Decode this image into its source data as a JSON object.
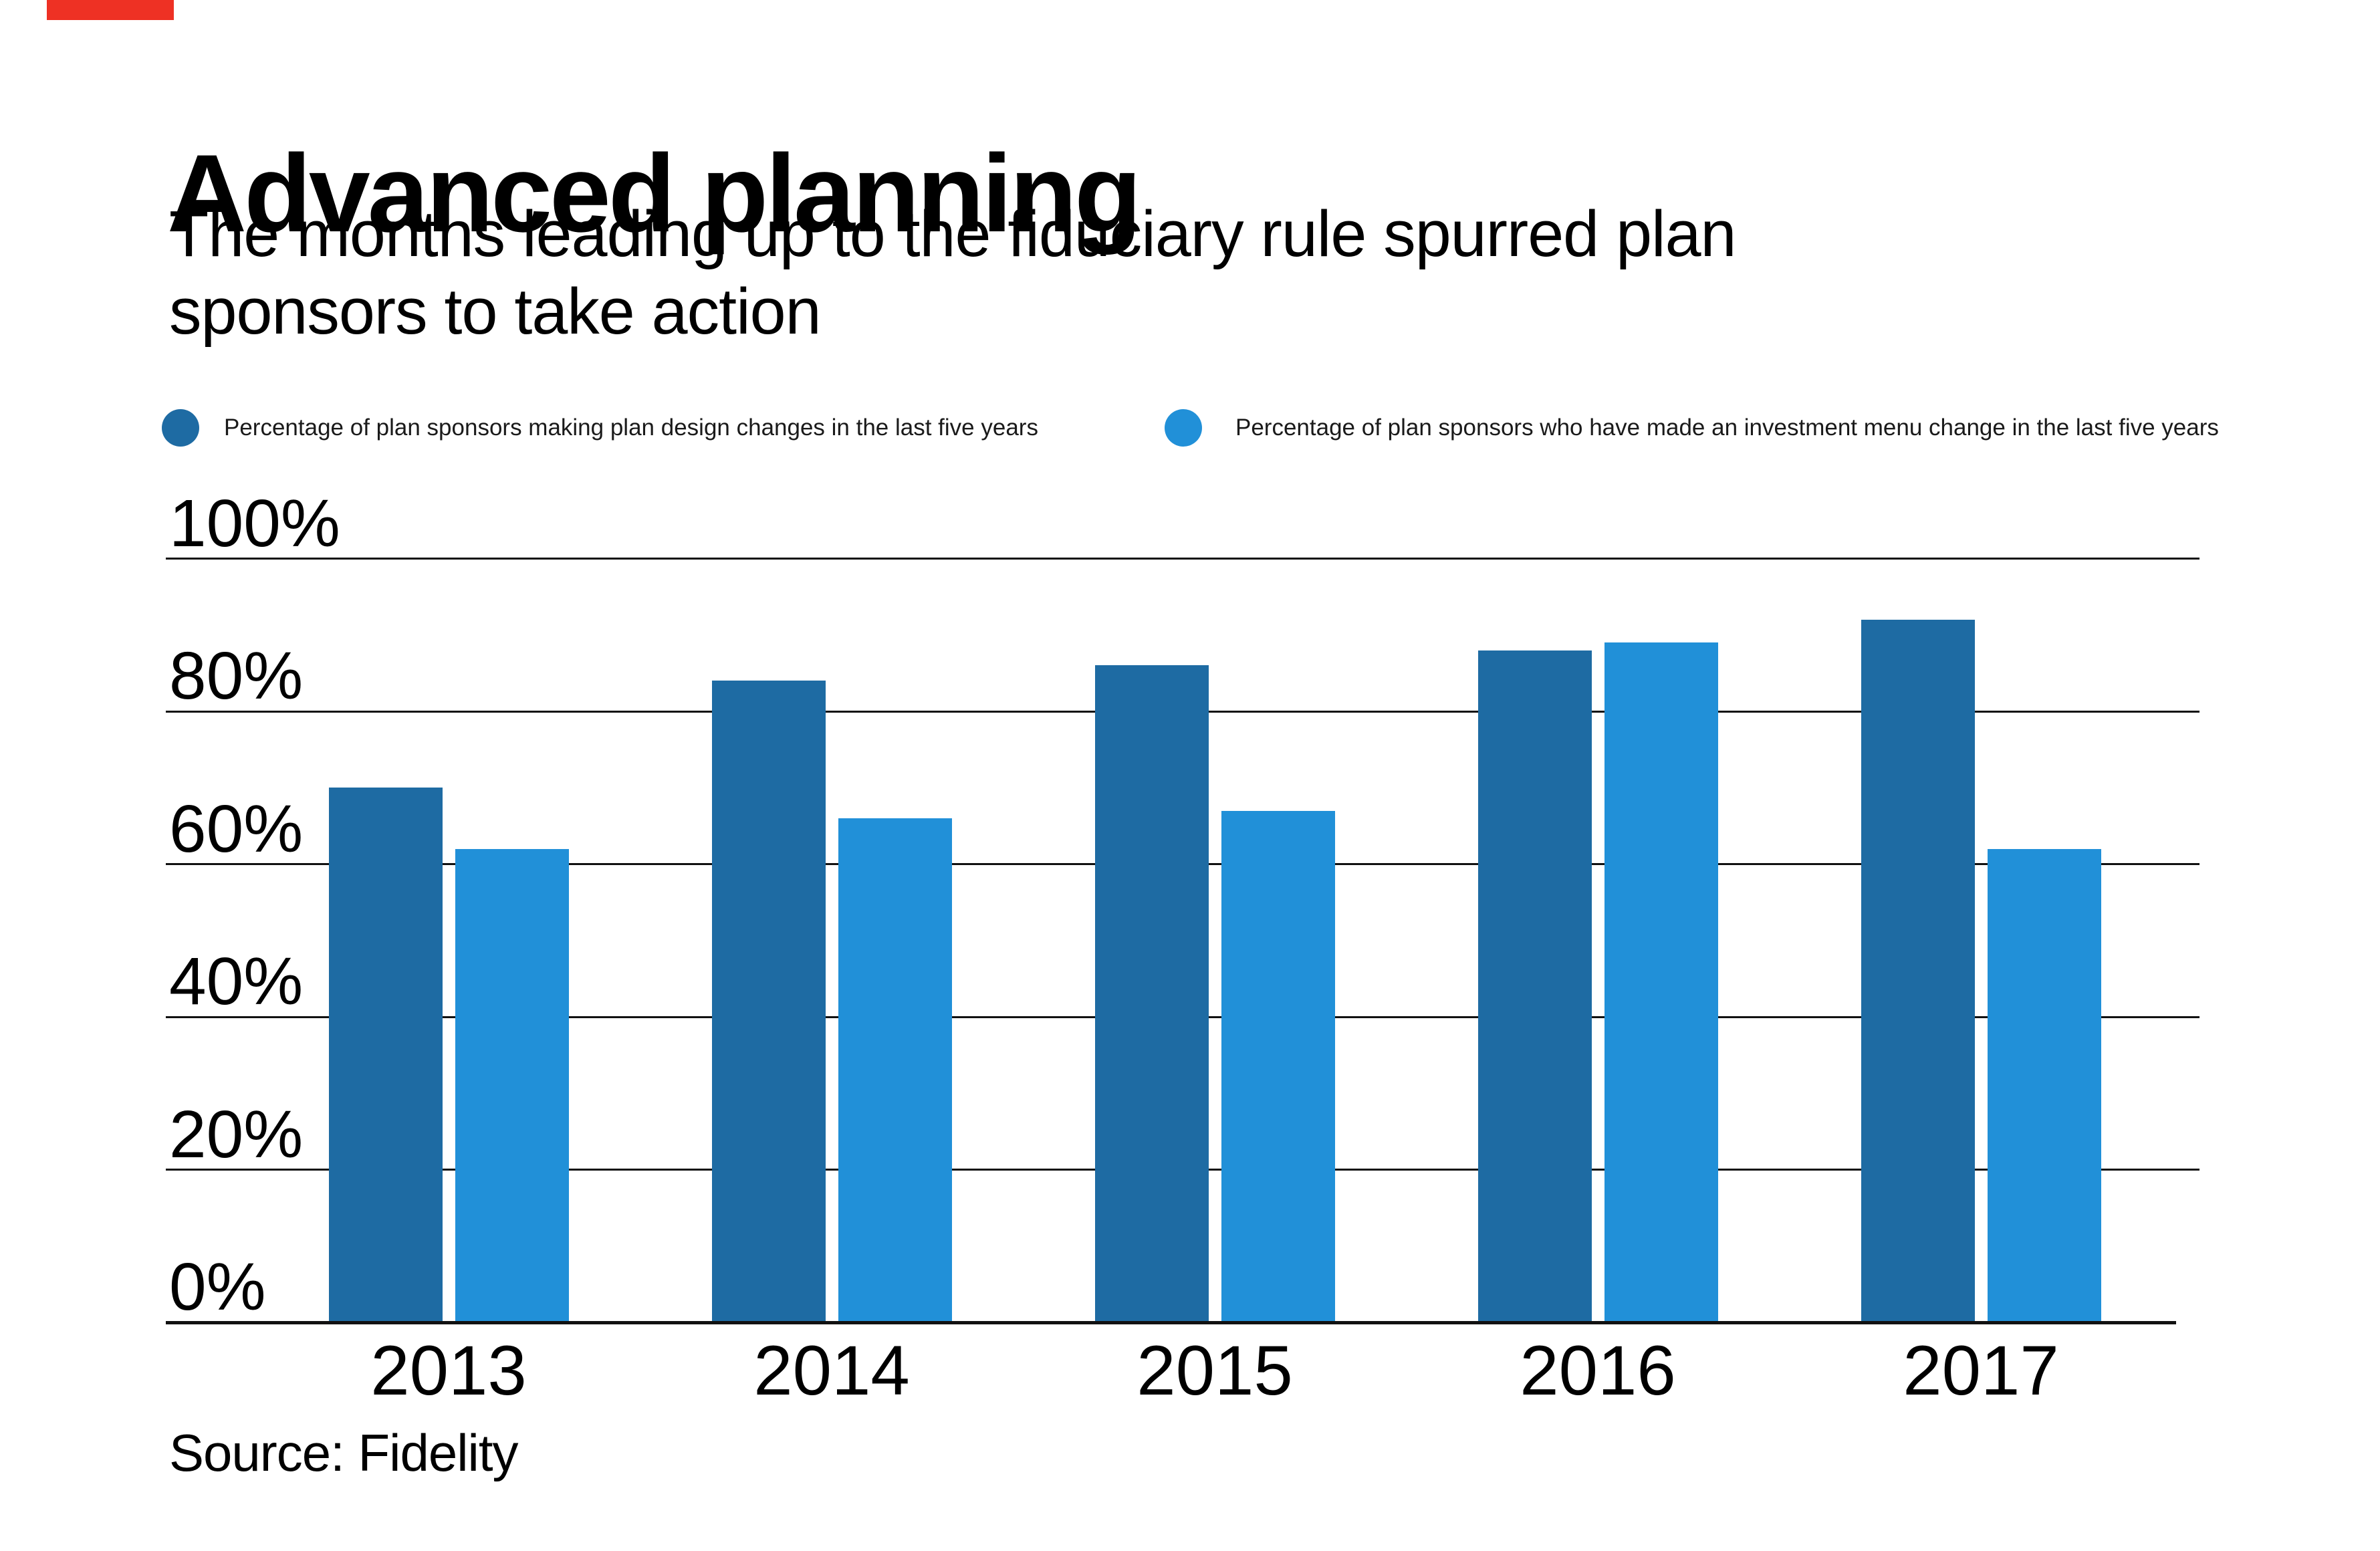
{
  "brand": {
    "color": "#ee3124"
  },
  "header": {
    "title": "Advanced planning",
    "subtitle_lines": [
      "The months leading up to the fiduciary rule spurred plan",
      "sponsors to take action"
    ]
  },
  "legend": {
    "items": [
      {
        "label": "Percentage of plan sponsors making plan design changes in the last five years",
        "color": "#1e6ba3"
      },
      {
        "label": "Percentage of plan sponsors who have made an investment menu change in the last five years",
        "color": "#2190d8"
      }
    ]
  },
  "chart_data": {
    "type": "bar",
    "title": "Advanced planning",
    "subtitle": "The months leading up to the fiduciary rule spurred plan sponsors to take action",
    "categories": [
      "2013",
      "2014",
      "2015",
      "2016",
      "2017"
    ],
    "series": [
      {
        "name": "Percentage of plan sponsors making plan design changes in the last five years",
        "color": "#1e6ba3",
        "values": [
          70,
          84,
          86,
          88,
          92
        ]
      },
      {
        "name": "Percentage of plan sponsors who have made an investment menu change in the last five years",
        "color": "#2190d8",
        "values": [
          62,
          66,
          67,
          89,
          62
        ]
      }
    ],
    "xlabel": "",
    "ylabel": "",
    "unit": "%",
    "y_axis": {
      "tick_labels": [
        "100%",
        "80%",
        "60%",
        "40%",
        "20%",
        "0%"
      ],
      "tick_values": [
        100,
        80,
        60,
        40,
        20,
        0
      ],
      "range": [
        0,
        100
      ],
      "grid": true
    },
    "legend_position": "top",
    "source": "Source: Fidelity"
  },
  "source": {
    "label": "Source: Fidelity"
  }
}
